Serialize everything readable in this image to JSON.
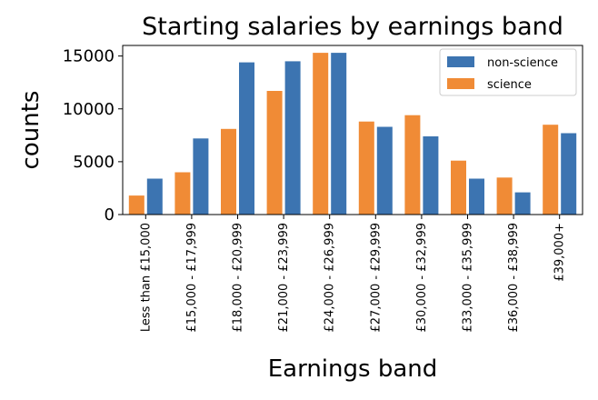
{
  "chart_data": {
    "type": "bar",
    "title": "Starting salaries by earnings band",
    "xlabel": "Earnings band",
    "ylabel": "counts",
    "categories": [
      "Less than £15,000",
      "£15,000 - £17,999",
      "£18,000 - £20,999",
      "£21,000 - £23,999",
      "£24,000 - £26,999",
      "£27,000 - £29,999",
      "£30,000 - £32,999",
      "£33,000 - £35,999",
      "£36,000 - £38,999",
      "£39,000+"
    ],
    "series": [
      {
        "name": "science",
        "color": "#f08b36",
        "values": [
          1800,
          4000,
          8100,
          11700,
          15300,
          8800,
          9400,
          5100,
          3500,
          8500
        ]
      },
      {
        "name": "non-science",
        "color": "#3c74b1",
        "values": [
          3400,
          7200,
          14400,
          14500,
          15300,
          8300,
          7400,
          3400,
          2100,
          7700
        ]
      }
    ],
    "legend_order": [
      "non-science",
      "science"
    ],
    "ylim": [
      0,
      16000
    ],
    "yticks": [
      0,
      5000,
      10000,
      15000
    ],
    "grid": false,
    "legend_position": "top-right"
  }
}
